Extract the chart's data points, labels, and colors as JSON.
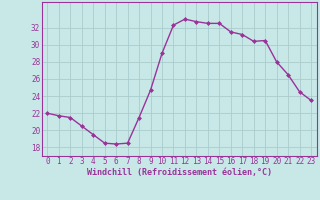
{
  "x": [
    0,
    1,
    2,
    3,
    4,
    5,
    6,
    7,
    8,
    9,
    10,
    11,
    12,
    13,
    14,
    15,
    16,
    17,
    18,
    19,
    20,
    21,
    22,
    23
  ],
  "y": [
    22.0,
    21.7,
    21.5,
    20.5,
    19.5,
    18.5,
    18.4,
    18.5,
    21.5,
    24.7,
    29.0,
    32.3,
    33.0,
    32.7,
    32.5,
    32.5,
    31.5,
    31.2,
    30.4,
    30.5,
    28.0,
    26.5,
    24.5,
    23.5
  ],
  "line_color": "#993399",
  "marker": "D",
  "marker_size": 2.0,
  "bg_color": "#c8e8e8",
  "grid_color": "#aacccc",
  "xlabel": "Windchill (Refroidissement éolien,°C)",
  "ylim": [
    17,
    35
  ],
  "xlim": [
    -0.5,
    23.5
  ],
  "yticks": [
    18,
    20,
    22,
    24,
    26,
    28,
    30,
    32
  ],
  "xticks": [
    0,
    1,
    2,
    3,
    4,
    5,
    6,
    7,
    8,
    9,
    10,
    11,
    12,
    13,
    14,
    15,
    16,
    17,
    18,
    19,
    20,
    21,
    22,
    23
  ],
  "tick_color": "#993399",
  "label_color": "#993399",
  "line_width": 1.0,
  "tick_fontsize": 5.5,
  "xlabel_fontsize": 6.0
}
